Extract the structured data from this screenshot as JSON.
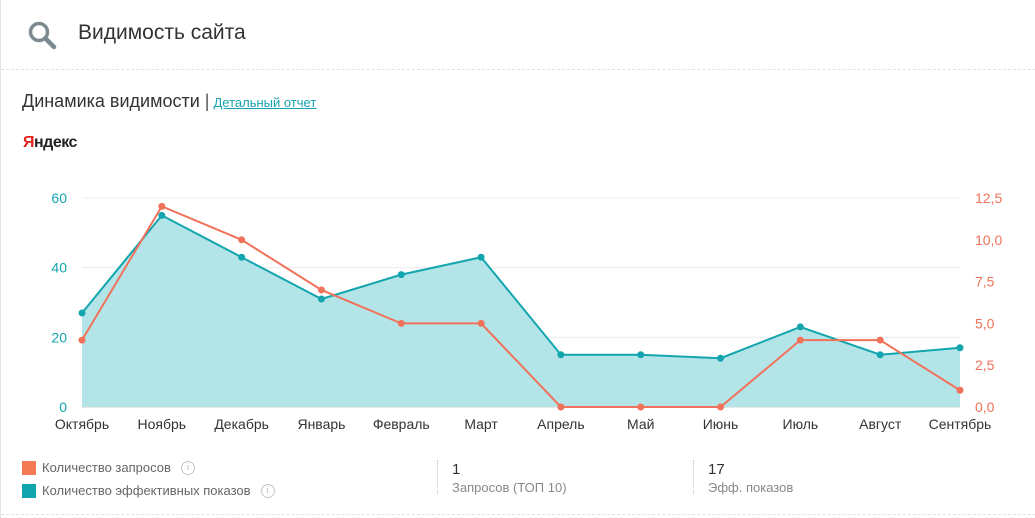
{
  "header": {
    "title": "Видимость сайта",
    "icon": "search-icon"
  },
  "section": {
    "title": "Динамика видимости",
    "separator": "|",
    "link": "Детальный отчет"
  },
  "brand": {
    "first_letter": "Я",
    "rest": "ндекс"
  },
  "colors": {
    "teal": "#13a5ad",
    "teal_fill": "#b3e5e8",
    "orange": "#f0725a"
  },
  "legend": [
    {
      "label": "Количество запросов",
      "color": "#f47a55"
    },
    {
      "label": "Количество эффективных показов",
      "color": "#13a5ad"
    }
  ],
  "stats": [
    {
      "value": "1",
      "label": "Запросов (ТОП 10)"
    },
    {
      "value": "17",
      "label": "Эфф. показов"
    }
  ],
  "chart_data": {
    "type": "line",
    "categories": [
      "Октябрь",
      "Ноябрь",
      "Декабрь",
      "Январь",
      "Февраль",
      "Март",
      "Апрель",
      "Май",
      "Июнь",
      "Июль",
      "Август",
      "Сентябрь"
    ],
    "series": [
      {
        "name": "Количество эффективных показов",
        "axis": "left",
        "style": "area",
        "values": [
          27,
          55,
          43,
          31,
          38,
          43,
          15,
          15,
          14,
          23,
          15,
          17
        ]
      },
      {
        "name": "Количество запросов",
        "axis": "right",
        "style": "line",
        "values": [
          4,
          12,
          10,
          7,
          5,
          5,
          0,
          0,
          0,
          4,
          4,
          1
        ]
      }
    ],
    "y_left": {
      "ticks": [
        "0",
        "20",
        "40",
        "60"
      ],
      "lim": [
        0,
        60
      ]
    },
    "y_right": {
      "ticks": [
        "0,0",
        "2,5",
        "5,0",
        "7,5",
        "10,0",
        "12,5"
      ],
      "lim": [
        0,
        12.5
      ]
    },
    "grid": true
  }
}
